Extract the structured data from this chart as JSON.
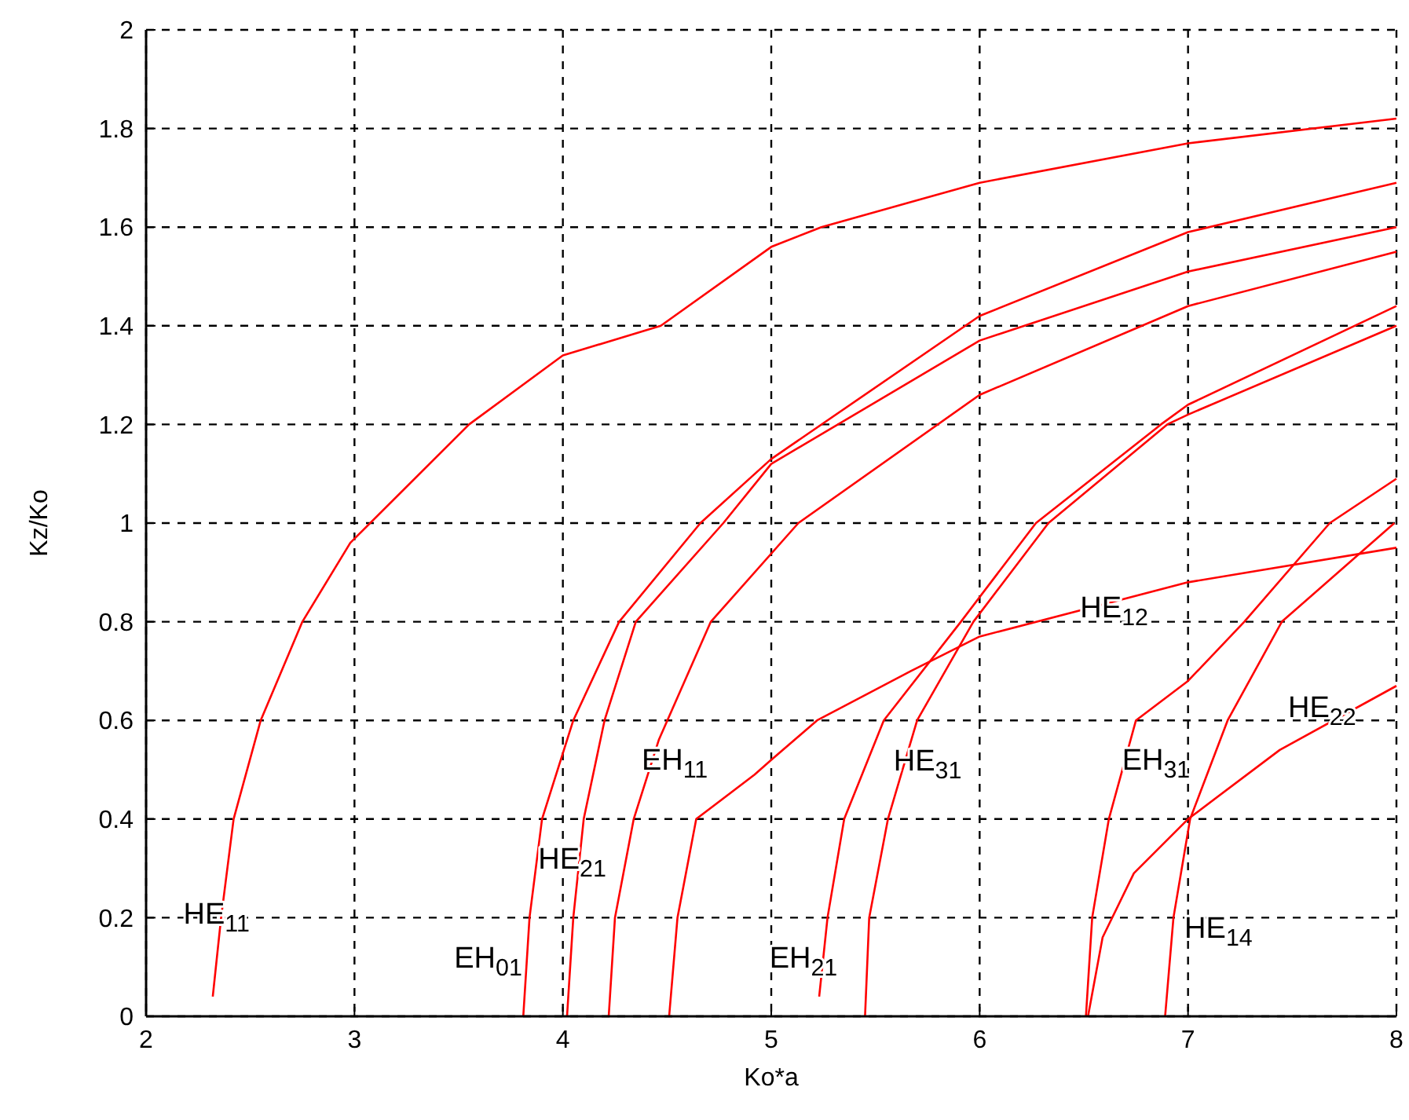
{
  "chart_data": {
    "type": "line",
    "xlabel": "Ko*a",
    "ylabel": "Kz/Ko",
    "xlim": [
      2,
      8
    ],
    "ylim": [
      0,
      2
    ],
    "xticks": [
      2,
      3,
      4,
      5,
      6,
      7,
      8
    ],
    "yticks": [
      0,
      0.2,
      0.4,
      0.6,
      0.8,
      1,
      1.2,
      1.4,
      1.6,
      1.8,
      2
    ],
    "grid": true,
    "marker": "none",
    "line_style": "solid",
    "series": [
      {
        "name": "HE$_{11}$",
        "color": "#ff0000",
        "x": [
          2.32,
          2.36,
          2.42,
          2.55,
          2.75,
          2.98,
          3.55,
          4,
          4.47,
          5,
          5.24,
          6,
          7,
          8
        ],
        "values": [
          0.04,
          0.2,
          0.4,
          0.6,
          0.8,
          0.96,
          1.2,
          1.34,
          1.4,
          1.56,
          1.6,
          1.69,
          1.77,
          1.82
        ]
      },
      {
        "name": "EH$_{01}$",
        "color": "#ff0000",
        "x": [
          3.81,
          3.84,
          3.9,
          4.05,
          4.27,
          4.66,
          5,
          6,
          7,
          8
        ],
        "values": [
          0,
          0.2,
          0.4,
          0.6,
          0.8,
          1,
          1.13,
          1.42,
          1.59,
          1.69
        ]
      },
      {
        "name": "HE$_{21}$",
        "color": "#ff0000",
        "x": [
          4.02,
          4.05,
          4.1,
          4.2,
          4.35,
          4.77,
          5,
          6,
          7,
          8
        ],
        "values": [
          0,
          0.2,
          0.4,
          0.6,
          0.8,
          1,
          1.12,
          1.37,
          1.51,
          1.6
        ]
      },
      {
        "name": "EH$_{11}$",
        "color": "#ff0000",
        "x": [
          4.22,
          4.25,
          4.34,
          4.46,
          4.71,
          5.13,
          6,
          7,
          8
        ],
        "values": [
          0,
          0.2,
          0.4,
          0.56,
          0.8,
          1,
          1.26,
          1.44,
          1.55
        ]
      },
      {
        "name": "HE$_{12}$",
        "color": "#ff0000",
        "x": [
          4.51,
          4.55,
          4.64,
          4.92,
          5,
          5.22,
          5.67,
          6,
          7,
          8
        ],
        "values": [
          0,
          0.2,
          0.4,
          0.49,
          0.52,
          0.6,
          0.7,
          0.77,
          0.88,
          0.95
        ]
      },
      {
        "name": "EH$_{21}$",
        "color": "#ff0000",
        "x": [
          5.23,
          5.27,
          5.35,
          5.54,
          5.91,
          6.27,
          6.87,
          7,
          8
        ],
        "values": [
          0.04,
          0.2,
          0.4,
          0.6,
          0.8,
          1,
          1.2,
          1.24,
          1.44
        ]
      },
      {
        "name": "HE$_{31}$",
        "color": "#ff0000",
        "x": [
          5.45,
          5.47,
          5.56,
          5.7,
          5.97,
          6.33,
          6.9,
          7,
          8
        ],
        "values": [
          0,
          0.2,
          0.4,
          0.6,
          0.8,
          1,
          1.2,
          1.22,
          1.4
        ]
      },
      {
        "name": "EH$_{31}$",
        "color": "#ff0000",
        "x": [
          6.51,
          6.54,
          6.62,
          6.75,
          7,
          7.27,
          7.68,
          8
        ],
        "values": [
          0,
          0.2,
          0.4,
          0.6,
          0.68,
          0.8,
          1,
          1.09
        ]
      },
      {
        "name": "HE$_{22}$",
        "color": "#ff0000",
        "x": [
          6.52,
          6.59,
          6.74,
          7,
          7.44,
          8
        ],
        "values": [
          0,
          0.16,
          0.29,
          0.4,
          0.54,
          0.67
        ]
      },
      {
        "name": "HE$_{14}$",
        "color": "#ff0000",
        "x": [
          6.89,
          6.93,
          7.01,
          7.19,
          7.45,
          7.99
        ],
        "values": [
          0,
          0.2,
          0.4,
          0.6,
          0.8,
          1
        ]
      }
    ]
  }
}
